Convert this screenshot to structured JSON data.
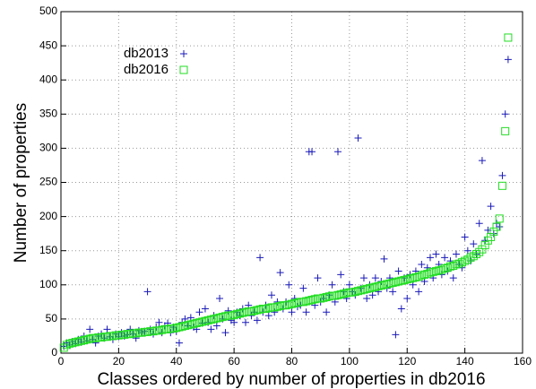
{
  "chart_data": {
    "type": "scatter",
    "x_label": "Classes ordered by number of properties in db2016",
    "y_label": "Number of properties",
    "xlim": [
      0,
      160
    ],
    "xticks": [
      0,
      20,
      40,
      60,
      80,
      100,
      120,
      140,
      160
    ],
    "ylim": [
      0,
      500
    ],
    "yticks": [
      0,
      50,
      100,
      150,
      200,
      250,
      300,
      350,
      400,
      450,
      500
    ],
    "grid": true,
    "legend": "top-left",
    "x": [
      1,
      2,
      3,
      4,
      5,
      6,
      7,
      8,
      9,
      10,
      11,
      12,
      13,
      14,
      15,
      16,
      17,
      18,
      19,
      20,
      21,
      22,
      23,
      24,
      25,
      26,
      27,
      28,
      29,
      30,
      31,
      32,
      33,
      34,
      35,
      36,
      37,
      38,
      39,
      40,
      41,
      42,
      43,
      44,
      45,
      46,
      47,
      48,
      49,
      50,
      51,
      52,
      53,
      54,
      55,
      56,
      57,
      58,
      59,
      60,
      61,
      62,
      63,
      64,
      65,
      66,
      67,
      68,
      69,
      70,
      71,
      72,
      73,
      74,
      75,
      76,
      77,
      78,
      79,
      80,
      81,
      82,
      83,
      84,
      85,
      86,
      87,
      88,
      89,
      90,
      91,
      92,
      93,
      94,
      95,
      96,
      97,
      98,
      99,
      100,
      101,
      102,
      103,
      104,
      105,
      106,
      107,
      108,
      109,
      110,
      111,
      112,
      113,
      114,
      115,
      116,
      117,
      118,
      119,
      120,
      121,
      122,
      123,
      124,
      125,
      126,
      127,
      128,
      129,
      130,
      131,
      132,
      133,
      134,
      135,
      136,
      137,
      138,
      139,
      140,
      141,
      142,
      143,
      144,
      145,
      146,
      147,
      148,
      149,
      150,
      151,
      152,
      153,
      154,
      155
    ],
    "series": [
      {
        "name": "db2013",
        "color": "#1a1ab8",
        "marker": "plus",
        "values": [
          10,
          15,
          12,
          17,
          14,
          20,
          16,
          25,
          18,
          35,
          20,
          15,
          25,
          28,
          22,
          35,
          24,
          20,
          28,
          24,
          30,
          25,
          27,
          35,
          28,
          22,
          33,
          30,
          32,
          90,
          35,
          28,
          38,
          45,
          30,
          40,
          44,
          30,
          38,
          32,
          15,
          45,
          50,
          40,
          52,
          38,
          35,
          60,
          44,
          65,
          45,
          35,
          55,
          40,
          80,
          50,
          30,
          62,
          48,
          45,
          60,
          55,
          65,
          45,
          70,
          55,
          60,
          48,
          140,
          60,
          70,
          55,
          85,
          60,
          75,
          118,
          65,
          75,
          100,
          60,
          80,
          68,
          70,
          95,
          60,
          295,
          295,
          70,
          110,
          75,
          80,
          60,
          85,
          100,
          75,
          295,
          115,
          90,
          80,
          100,
          90,
          85,
          315,
          95,
          110,
          80,
          100,
          85,
          110,
          90,
          105,
          138,
          95,
          110,
          90,
          27,
          120,
          65,
          110,
          80,
          115,
          100,
          120,
          90,
          130,
          105,
          125,
          140,
          110,
          145,
          130,
          115,
          140,
          120,
          135,
          110,
          145,
          130,
          125,
          170,
          150,
          135,
          160,
          145,
          190,
          282,
          165,
          180,
          215,
          175,
          190,
          185,
          260,
          350,
          430
        ]
      },
      {
        "name": "db2016",
        "color": "#22dd22",
        "marker": "square",
        "values": [
          8,
          12,
          14,
          15,
          16,
          17,
          18,
          19,
          20,
          21,
          22,
          22,
          23,
          23,
          24,
          24,
          25,
          25,
          26,
          26,
          27,
          27,
          28,
          28,
          29,
          29,
          30,
          30,
          31,
          31,
          32,
          32,
          33,
          33,
          34,
          35,
          35,
          36,
          36,
          37,
          38,
          39,
          40,
          41,
          42,
          43,
          44,
          45,
          46,
          47,
          48,
          49,
          50,
          51,
          52,
          53,
          54,
          55,
          55,
          56,
          57,
          58,
          59,
          60,
          61,
          61,
          62,
          63,
          64,
          65,
          65,
          66,
          67,
          67,
          68,
          69,
          70,
          70,
          71,
          72,
          73,
          74,
          75,
          75,
          76,
          77,
          78,
          79,
          80,
          80,
          81,
          82,
          83,
          84,
          84,
          85,
          86,
          87,
          88,
          89,
          89,
          90,
          91,
          92,
          93,
          94,
          95,
          96,
          97,
          98,
          99,
          100,
          101,
          102,
          103,
          104,
          105,
          106,
          107,
          108,
          109,
          110,
          111,
          112,
          114,
          115,
          116,
          118,
          119,
          120,
          121,
          122,
          124,
          125,
          127,
          128,
          130,
          131,
          133,
          135,
          137,
          140,
          142,
          145,
          148,
          152,
          158,
          165,
          170,
          178,
          185,
          197,
          245,
          325,
          462
        ]
      }
    ]
  }
}
